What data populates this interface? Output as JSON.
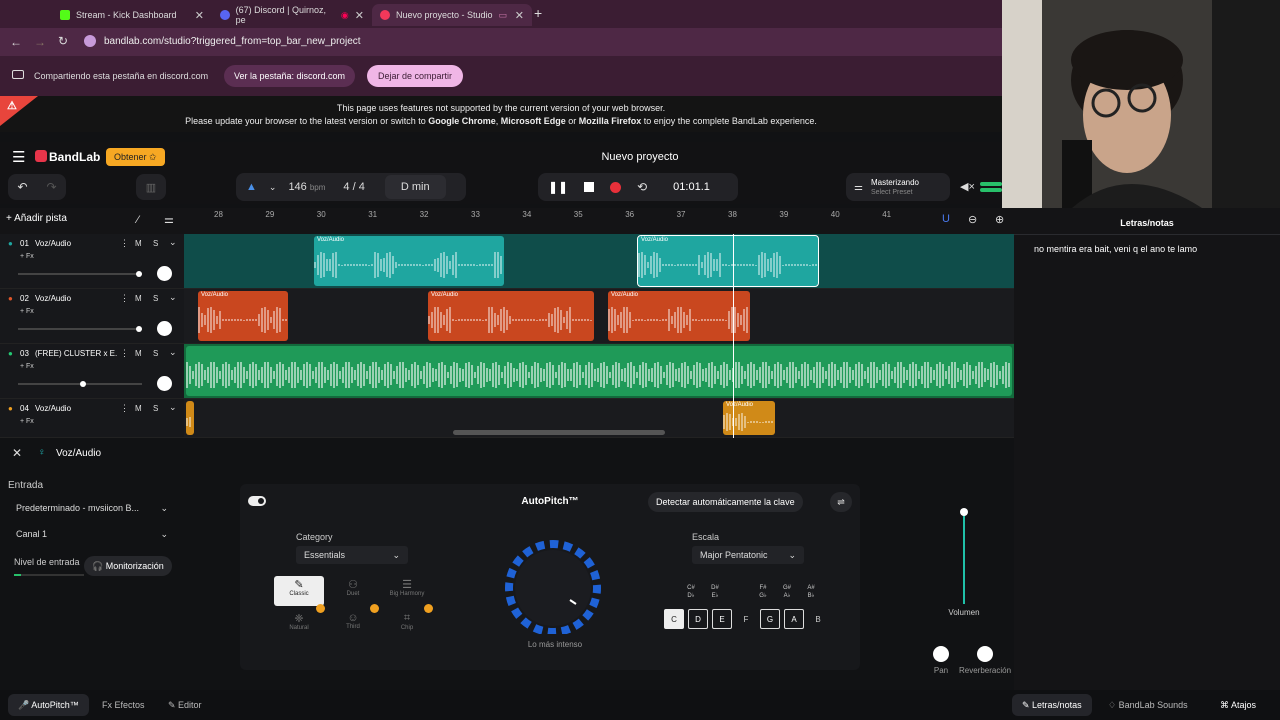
{
  "tabs": [
    {
      "label": "Stream - Kick Dashboard",
      "color": "#53fc18"
    },
    {
      "label": "(67) Discord | Quirnoz, pe",
      "color": "#5865f2"
    },
    {
      "label": "Nuevo proyecto - Studio",
      "color": "#f2385a"
    }
  ],
  "url": "bandlab.com/studio?triggered_from=top_bar_new_project",
  "share": {
    "text": "Compartiendo esta pestaña en discord.com",
    "view": "Ver la pestaña: discord.com",
    "stop": "Dejar de compartir"
  },
  "warning": {
    "line1": "This page uses features not supported by the current version of your web browser.",
    "line2a": "Please update your browser to the latest version or switch to ",
    "chrome": "Google Chrome",
    "sep1": ", ",
    "edge": "Microsoft Edge",
    "sep2": " or ",
    "firefox": "Mozilla Firefox",
    "line2b": " to enjoy the complete BandLab experience."
  },
  "app": {
    "logo": "BandLab",
    "get": "Obtener",
    "title": "Nuevo proyecto"
  },
  "transport": {
    "bpm": "146",
    "bpm_unit": "bpm",
    "sig_num": "4",
    "sig_den": "4",
    "key": "D min",
    "time": "01:01.1",
    "master": "Masterizando",
    "preset": "Select Preset"
  },
  "add_track": "Añadir pista",
  "ruler": [
    "28",
    "29",
    "30",
    "31",
    "32",
    "33",
    "34",
    "35",
    "36",
    "37",
    "38",
    "39",
    "40",
    "41"
  ],
  "tracks": [
    {
      "num": "01",
      "name": "Voz/Audio",
      "fx": "+ Fx",
      "m": "M",
      "s": "S",
      "color": "#1fa6a0"
    },
    {
      "num": "02",
      "name": "Voz/Audio",
      "fx": "+ Fx",
      "m": "M",
      "s": "S",
      "color": "#e0562a"
    },
    {
      "num": "03",
      "name": "(FREE) CLUSTER x E...",
      "fx": "+ Fx",
      "m": "M",
      "s": "S",
      "color": "#24c873"
    },
    {
      "num": "04",
      "name": "Voz/Audio",
      "fx": "+ Fx",
      "m": "M",
      "s": "S",
      "color": "#f0a020"
    }
  ],
  "clip_label": "Voz/Audio",
  "editor": {
    "track": "Voz/Audio",
    "input_label": "Entrada",
    "input_device": "Predeterminado - mvsiicon B...",
    "channel": "Canal 1",
    "level_label": "Nivel de entrada",
    "monitor": "Monitorización",
    "autopitch": "AutoPitch™",
    "detect": "Detectar automáticamente la clave",
    "category_label": "Category",
    "category": "Essentials",
    "presets": [
      {
        "label": "Classic"
      },
      {
        "label": "Duet"
      },
      {
        "label": "Big Harmony"
      },
      {
        "label": "Natural"
      },
      {
        "label": "Third"
      },
      {
        "label": "Chip"
      }
    ],
    "intensity": "Lo más intenso",
    "scale_label": "Escala",
    "scale": "Major Pentatonic",
    "sharps": [
      {
        "a": "C#",
        "b": "D♭"
      },
      {
        "a": "D#",
        "b": "E♭"
      },
      {
        "a": "F#",
        "b": "G♭"
      },
      {
        "a": "G#",
        "b": "A♭"
      },
      {
        "a": "A#",
        "b": "B♭"
      }
    ],
    "notes": [
      "C",
      "D",
      "E",
      "F",
      "G",
      "A",
      "B"
    ],
    "volume": "Volumen",
    "pan": "Pan",
    "reverb": "Reverberación"
  },
  "bottom": {
    "autopitch": "AutoPitch™",
    "effects": "Efectos",
    "editor": "Editor",
    "lyrics": "Letras/notas",
    "sounds": "BandLab Sounds",
    "shortcuts": "Atajos"
  },
  "lyrics": {
    "title": "Letras/notas",
    "text": "no mentira era bait, veni q el ano te lamo"
  }
}
